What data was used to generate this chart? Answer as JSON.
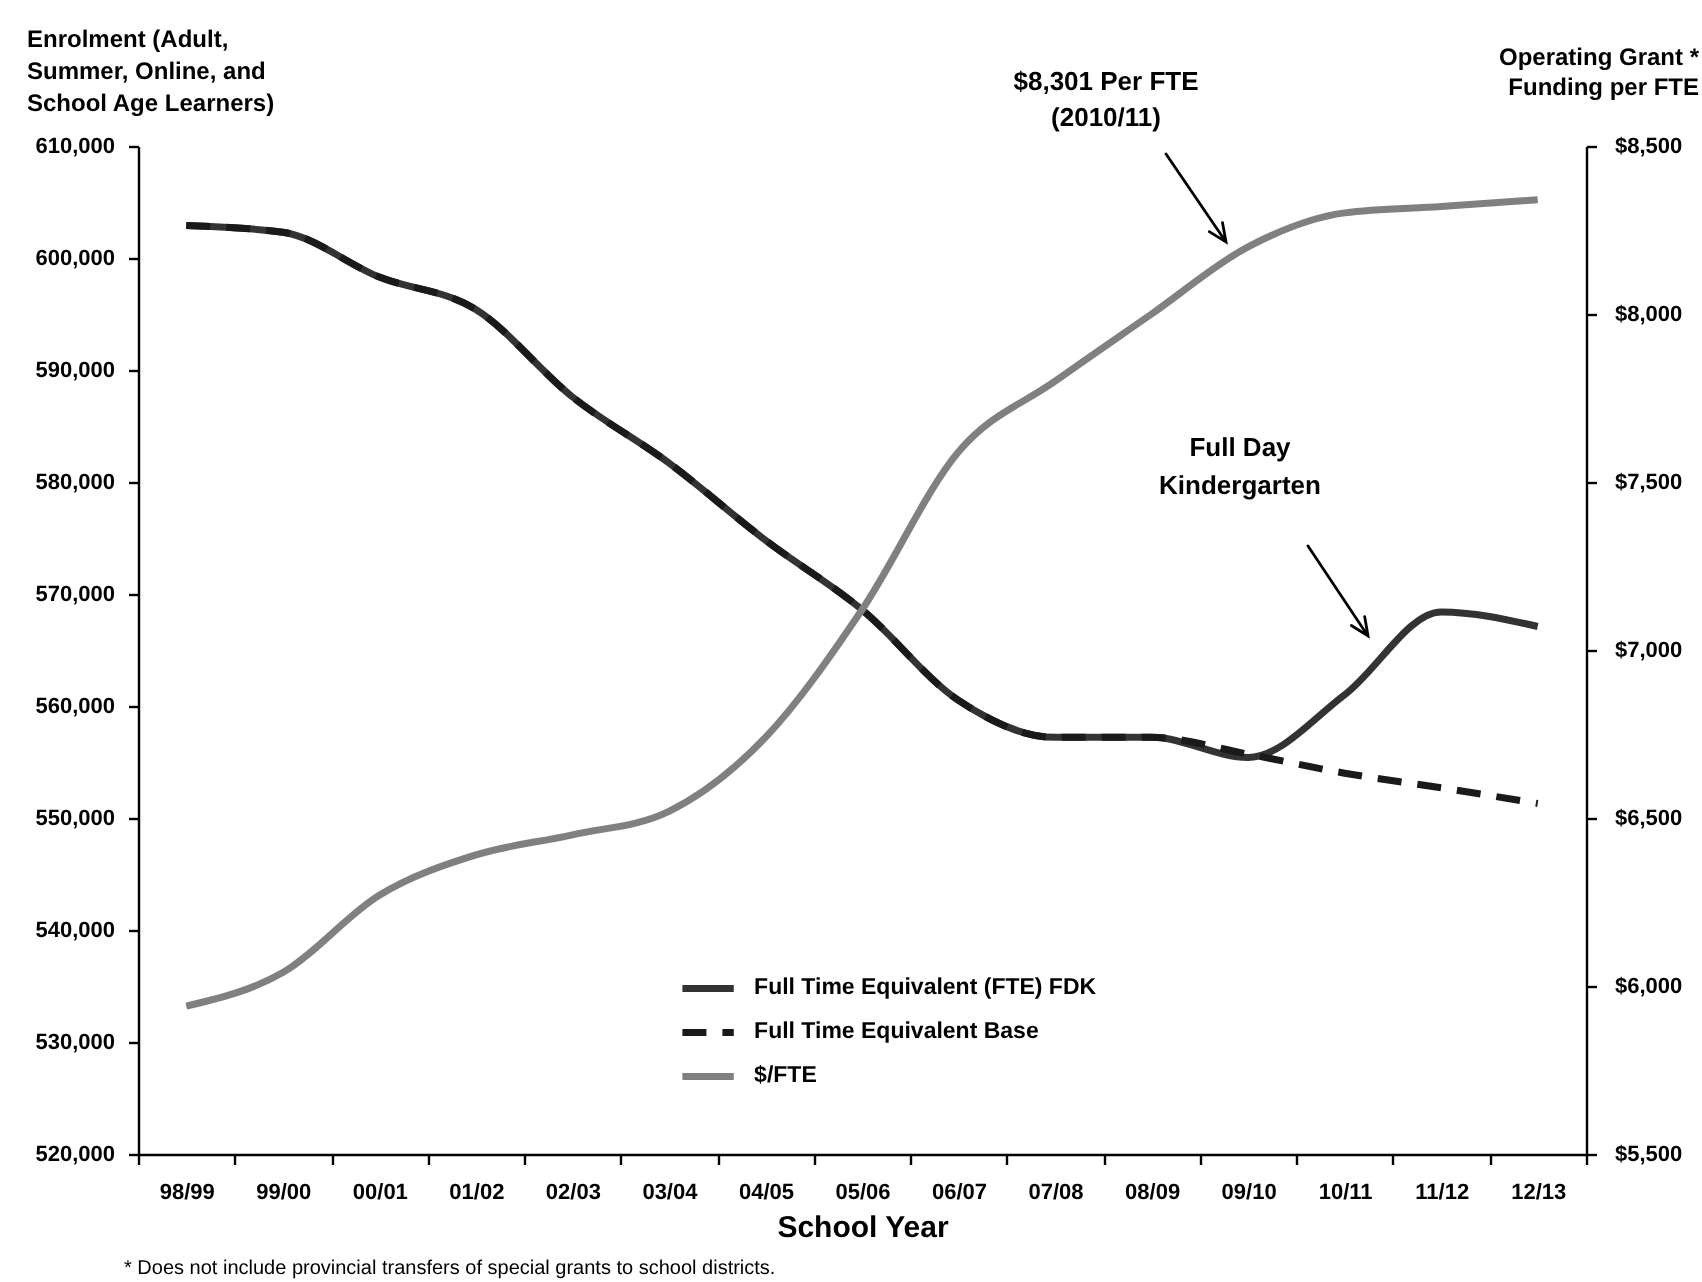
{
  "chart_data": {
    "type": "line",
    "xlabel": "School Year",
    "ylabel": "Enrolment (Adult,\nSummer, Online, and\nSchool Age Learners)",
    "y2label": "Operating Grant *\nFunding per FTE",
    "categories": [
      "98/99",
      "99/00",
      "00/01",
      "01/02",
      "02/03",
      "03/04",
      "04/05",
      "05/06",
      "06/07",
      "07/08",
      "08/09",
      "09/10",
      "10/11",
      "11/12",
      "12/13"
    ],
    "series": [
      {
        "name": "Full Time Equivalent (FTE) FDK",
        "color": "#333333",
        "line_style": "solid",
        "values": [
          602900,
          602300,
          598300,
          595400,
          587600,
          581700,
          574800,
          568600,
          560500,
          557200,
          557200,
          555400,
          561000,
          568400,
          567100
        ]
      },
      {
        "name": "Full Time Equivalent Base",
        "color": "#1a1a1a",
        "line_style": "dashed",
        "values": [
          602900,
          602300,
          598300,
          595400,
          587600,
          581700,
          574800,
          568600,
          560500,
          557200,
          557200,
          555700,
          554000,
          552700,
          551300
        ]
      },
      {
        "name": "$/FTE",
        "color": "#808080",
        "axis": "y2",
        "line_style": "solid",
        "values": [
          5940,
          6040,
          6270,
          6390,
          6450,
          6520,
          6740,
          7120,
          7590,
          7800,
          8000,
          8200,
          8301,
          8320,
          8340
        ]
      }
    ],
    "ylim": [
      520000,
      610000
    ],
    "yticks": [
      {
        "value": 520000,
        "label": "520,000"
      },
      {
        "value": 530000,
        "label": "530,000"
      },
      {
        "value": 540000,
        "label": "540,000"
      },
      {
        "value": 550000,
        "label": "550,000"
      },
      {
        "value": 560000,
        "label": "560,000"
      },
      {
        "value": 570000,
        "label": "570,000"
      },
      {
        "value": 580000,
        "label": "580,000"
      },
      {
        "value": 590000,
        "label": "590,000"
      },
      {
        "value": 600000,
        "label": "600,000"
      },
      {
        "value": 610000,
        "label": "610,000"
      }
    ],
    "y2lim": [
      5500,
      8500
    ],
    "y2ticks": [
      {
        "value": 5500,
        "label": "$5,500"
      },
      {
        "value": 6000,
        "label": "$6,000"
      },
      {
        "value": 6500,
        "label": "$6,500"
      },
      {
        "value": 7000,
        "label": "$7,000"
      },
      {
        "value": 7500,
        "label": "$7,500"
      },
      {
        "value": 8000,
        "label": "$8,000"
      },
      {
        "value": 8500,
        "label": "$8,500"
      }
    ],
    "legend": "bottom",
    "annotations": [
      "$8,301 Per FTE\n(2010/11)",
      "Full Day\nKindergarten",
      "* Does not include provincial transfers of special grants to school districts."
    ]
  }
}
